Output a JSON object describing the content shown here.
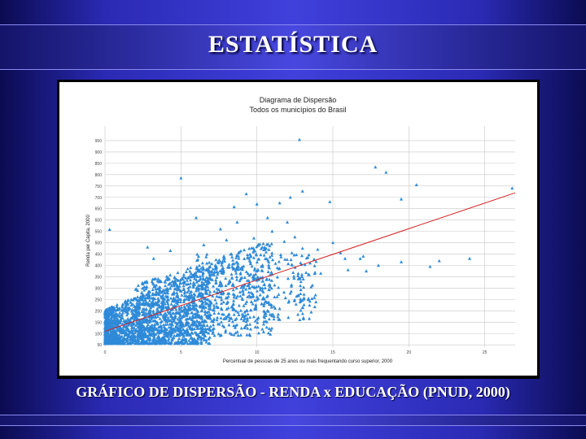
{
  "slide": {
    "title": "ESTATÍSTICA",
    "caption": "GRÁFICO DE DISPERSÃO - RENDA x EDUCAÇÃO  (PNUD, 2000)"
  },
  "colors": {
    "point": "#2e8ad8",
    "trendline": "#d42020",
    "grid": "#c8c8c8"
  },
  "chart_data": {
    "type": "scatter",
    "title": "Diagrama de Dispersão",
    "subtitle": "Todos os municípios do Brasil",
    "xlabel": "Percentual de pessoas de 25 anos ou mais frequentando curso superior, 2000",
    "ylabel": "Renda per Capita, 2000",
    "xlim": [
      0,
      27
    ],
    "ylim": [
      40,
      1000
    ],
    "x_ticks": [
      0,
      5,
      10,
      15,
      20,
      25
    ],
    "y_ticks": [
      50,
      100,
      150,
      200,
      250,
      300,
      350,
      400,
      450,
      500,
      550,
      600,
      650,
      700,
      750,
      800,
      850,
      900,
      950
    ],
    "grid": true,
    "trendline": {
      "x": [
        0,
        27
      ],
      "y": [
        110,
        720
      ]
    },
    "points": [
      [
        12.8,
        954
      ],
      [
        17.8,
        833
      ],
      [
        18.5,
        810
      ],
      [
        26.8,
        740
      ],
      [
        20.5,
        755
      ],
      [
        19.5,
        692
      ],
      [
        5.0,
        785
      ],
      [
        8.5,
        658
      ],
      [
        9.3,
        715
      ],
      [
        12.2,
        700
      ],
      [
        13.0,
        727
      ],
      [
        14.8,
        680
      ],
      [
        11.5,
        675
      ],
      [
        10.0,
        670
      ],
      [
        0.3,
        558
      ],
      [
        24.0,
        430
      ],
      [
        22.0,
        420
      ],
      [
        16.0,
        380
      ],
      [
        13.5,
        410
      ],
      [
        14.2,
        365
      ],
      [
        15.5,
        455
      ],
      [
        18.0,
        400
      ],
      [
        16.8,
        430
      ],
      [
        19.5,
        415
      ],
      [
        4.3,
        465
      ],
      [
        2.8,
        480
      ],
      [
        6.5,
        490
      ],
      [
        3.2,
        430
      ],
      [
        8.0,
        512
      ],
      [
        11.0,
        550
      ],
      [
        10.7,
        610
      ],
      [
        12.0,
        590
      ],
      [
        7.6,
        560
      ],
      [
        9.8,
        520
      ],
      [
        13.8,
        398
      ],
      [
        17.2,
        375
      ],
      [
        21.4,
        395
      ],
      [
        15.0,
        500
      ],
      [
        14.0,
        470
      ],
      [
        12.5,
        525
      ],
      [
        10.5,
        480
      ],
      [
        6.0,
        610
      ],
      [
        8.7,
        590
      ],
      [
        13.0,
        475
      ],
      [
        11.8,
        505
      ],
      [
        15.8,
        430
      ],
      [
        17.0,
        440
      ],
      [
        12.3,
        455
      ]
    ]
  }
}
